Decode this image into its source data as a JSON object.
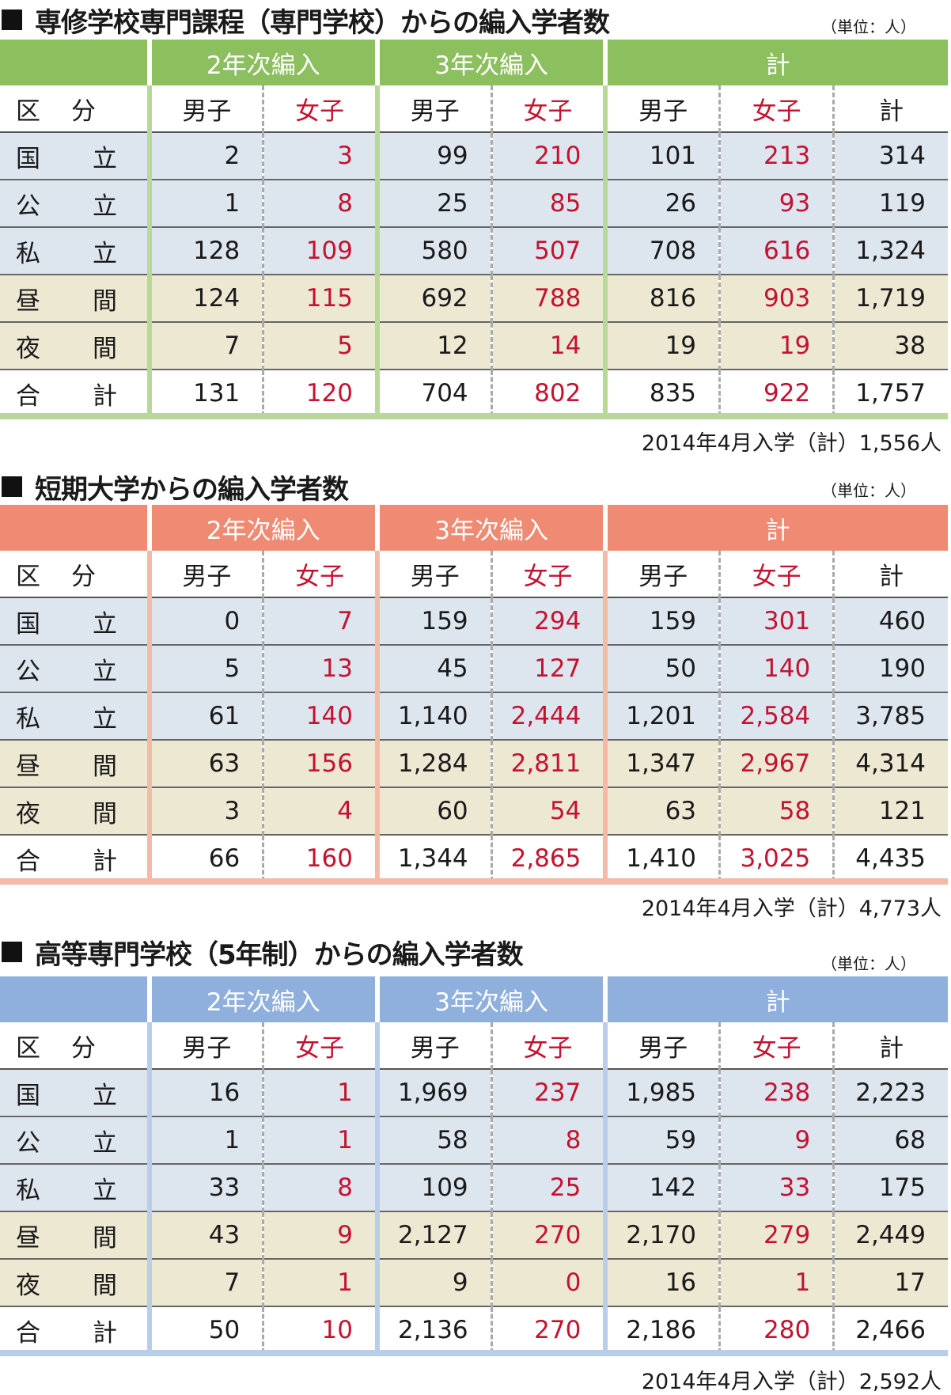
{
  "sections": [
    {
      "title": "専修学校専門課程（専門学校）からの編入学者数",
      "unit": "（単位：人）",
      "footer": "2014年4月入学（計）1,556人",
      "accent": "#8cbf5e",
      "accent_light": "#b8d89a",
      "row_tint": "#dde6ef",
      "night_tint": "#ede8d2",
      "group_headers": [
        "2年次編入",
        "3年次編入",
        "計"
      ],
      "sub_headers": [
        "区　分",
        "男子",
        "女子",
        "男子",
        "女子",
        "男子",
        "女子",
        "計"
      ],
      "rows": [
        {
          "label": [
            "国",
            "立"
          ],
          "values": [
            "2",
            "3",
            "99",
            "210",
            "101",
            "213",
            "314"
          ]
        },
        {
          "label": [
            "公",
            "立"
          ],
          "values": [
            "1",
            "8",
            "25",
            "85",
            "26",
            "93",
            "119"
          ]
        },
        {
          "label": [
            "私",
            "立"
          ],
          "values": [
            "128",
            "109",
            "580",
            "507",
            "708",
            "616",
            "1,324"
          ]
        },
        {
          "label": [
            "昼",
            "間"
          ],
          "values": [
            "124",
            "115",
            "692",
            "788",
            "816",
            "903",
            "1,719"
          ]
        },
        {
          "label": [
            "夜",
            "間"
          ],
          "values": [
            "7",
            "5",
            "12",
            "14",
            "19",
            "19",
            "38"
          ]
        },
        {
          "label": [
            "合",
            "計"
          ],
          "values": [
            "131",
            "120",
            "704",
            "802",
            "835",
            "922",
            "1,757"
          ]
        }
      ]
    },
    {
      "title": "短期大学からの編入学者数",
      "unit": "（単位：人）",
      "footer": "2014年4月入学（計）4,773人",
      "accent": "#ef8a73",
      "accent_light": "#f5b9a8",
      "row_tint": "#dde6ef",
      "night_tint": "#ede8d2",
      "group_headers": [
        "2年次編入",
        "3年次編入",
        "計"
      ],
      "sub_headers": [
        "区　分",
        "男子",
        "女子",
        "男子",
        "女子",
        "男子",
        "女子",
        "計"
      ],
      "rows": [
        {
          "label": [
            "国",
            "立"
          ],
          "values": [
            "0",
            "7",
            "159",
            "294",
            "159",
            "301",
            "460"
          ]
        },
        {
          "label": [
            "公",
            "立"
          ],
          "values": [
            "5",
            "13",
            "45",
            "127",
            "50",
            "140",
            "190"
          ]
        },
        {
          "label": [
            "私",
            "立"
          ],
          "values": [
            "61",
            "140",
            "1,140",
            "2,444",
            "1,201",
            "2,584",
            "3,785"
          ]
        },
        {
          "label": [
            "昼",
            "間"
          ],
          "values": [
            "63",
            "156",
            "1,284",
            "2,811",
            "1,347",
            "2,967",
            "4,314"
          ]
        },
        {
          "label": [
            "夜",
            "間"
          ],
          "values": [
            "3",
            "4",
            "60",
            "54",
            "63",
            "58",
            "121"
          ]
        },
        {
          "label": [
            "合",
            "計"
          ],
          "values": [
            "66",
            "160",
            "1,344",
            "2,865",
            "1,410",
            "3,025",
            "4,435"
          ]
        }
      ]
    },
    {
      "title": "高等専門学校（5年制）からの編入学者数",
      "unit": "（単位：人）",
      "footer": "2014年4月入学（計）2,592人",
      "accent": "#8fb0dc",
      "accent_light": "#b9cde9",
      "row_tint": "#dde6ef",
      "night_tint": "#ede8d2",
      "group_headers": [
        "2年次編入",
        "3年次編入",
        "計"
      ],
      "sub_headers": [
        "区　分",
        "男子",
        "女子",
        "男子",
        "女子",
        "男子",
        "女子",
        "計"
      ],
      "rows": [
        {
          "label": [
            "国",
            "立"
          ],
          "values": [
            "16",
            "1",
            "1,969",
            "237",
            "1,985",
            "238",
            "2,223"
          ]
        },
        {
          "label": [
            "公",
            "立"
          ],
          "values": [
            "1",
            "1",
            "58",
            "8",
            "59",
            "9",
            "68"
          ]
        },
        {
          "label": [
            "私",
            "立"
          ],
          "values": [
            "33",
            "8",
            "109",
            "25",
            "142",
            "33",
            "175"
          ]
        },
        {
          "label": [
            "昼",
            "間"
          ],
          "values": [
            "43",
            "9",
            "2,127",
            "270",
            "2,170",
            "279",
            "2,449"
          ]
        },
        {
          "label": [
            "夜",
            "間"
          ],
          "values": [
            "7",
            "1",
            "9",
            "0",
            "16",
            "1",
            "17"
          ]
        },
        {
          "label": [
            "合",
            "計"
          ],
          "values": [
            "50",
            "10",
            "2,136",
            "270",
            "2,186",
            "280",
            "2,466"
          ]
        }
      ]
    }
  ]
}
